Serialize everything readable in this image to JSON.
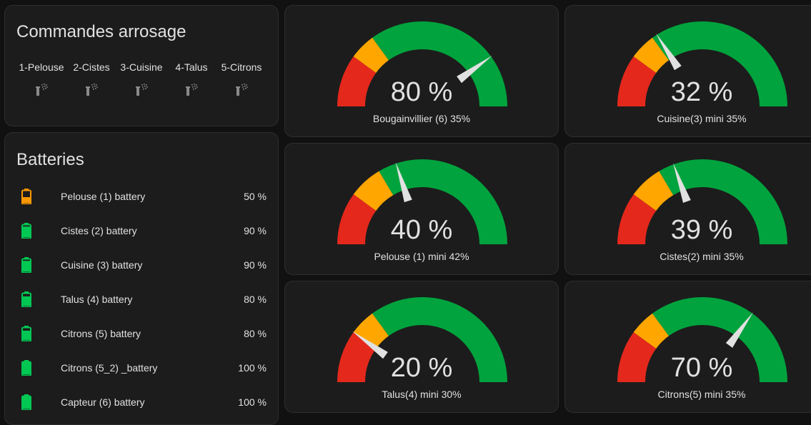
{
  "colors": {
    "background": "#111111",
    "card": "#1c1c1c",
    "gauge_red": "#e4281c",
    "gauge_orange": "#ffa600",
    "gauge_green": "#00a33d",
    "battery_orange": "#ff9800",
    "battery_green": "#00c853",
    "sprinkler_icon": "#8a8a8a",
    "needle": "#e1e1e1"
  },
  "commands": {
    "title": "Commandes arrosage",
    "items": [
      {
        "label": "1-Pelouse",
        "icon": "sprinkler-icon"
      },
      {
        "label": "2-Cistes",
        "icon": "sprinkler-icon"
      },
      {
        "label": "3-Cuisine",
        "icon": "sprinkler-icon"
      },
      {
        "label": "4-Talus",
        "icon": "sprinkler-icon"
      },
      {
        "label": "5-Citrons",
        "icon": "sprinkler-icon"
      }
    ]
  },
  "batteries": {
    "title": "Batteries",
    "items": [
      {
        "name": "Pelouse (1) battery",
        "value": "50 %",
        "level": 50,
        "color": "#ff9800"
      },
      {
        "name": "Cistes (2) battery",
        "value": "90 %",
        "level": 90,
        "color": "#00c853"
      },
      {
        "name": "Cuisine (3) battery",
        "value": "90 %",
        "level": 90,
        "color": "#00c853"
      },
      {
        "name": "Talus (4) battery",
        "value": "80 %",
        "level": 80,
        "color": "#00c853"
      },
      {
        "name": "Citrons (5) battery",
        "value": "80 %",
        "level": 80,
        "color": "#00c853"
      },
      {
        "name": "Citrons (5_2) _battery",
        "value": "100 %",
        "level": 100,
        "color": "#00c853"
      },
      {
        "name": "Capteur (6) battery",
        "value": "100 %",
        "level": 100,
        "color": "#00c853"
      }
    ]
  },
  "gauges": [
    {
      "name": "Bougainvillier (6) 35%",
      "display": "80 %",
      "value": 80,
      "min": 0,
      "max": 100,
      "severity": {
        "red": 0,
        "orange": 20,
        "green": 30
      }
    },
    {
      "name": "Cuisine(3) mini 35%",
      "display": "32 %",
      "value": 32,
      "min": 0,
      "max": 100,
      "severity": {
        "red": 0,
        "orange": 20,
        "green": 30
      }
    },
    {
      "name": "Pelouse (1) mini 42%",
      "display": "40 %",
      "value": 40,
      "min": 0,
      "max": 100,
      "severity": {
        "red": 0,
        "orange": 20,
        "green": 33
      }
    },
    {
      "name": "Cistes(2) mini 35%",
      "display": "39 %",
      "value": 39,
      "min": 0,
      "max": 100,
      "severity": {
        "red": 0,
        "orange": 20,
        "green": 33
      }
    },
    {
      "name": "Talus(4) mini 30%",
      "display": "20 %",
      "value": 20,
      "min": 0,
      "max": 100,
      "severity": {
        "red": 0,
        "orange": 20,
        "green": 30
      }
    },
    {
      "name": "Citrons(5) mini 35%",
      "display": "70 %",
      "value": 70,
      "min": 0,
      "max": 100,
      "severity": {
        "red": 0,
        "orange": 20,
        "green": 30
      }
    }
  ]
}
